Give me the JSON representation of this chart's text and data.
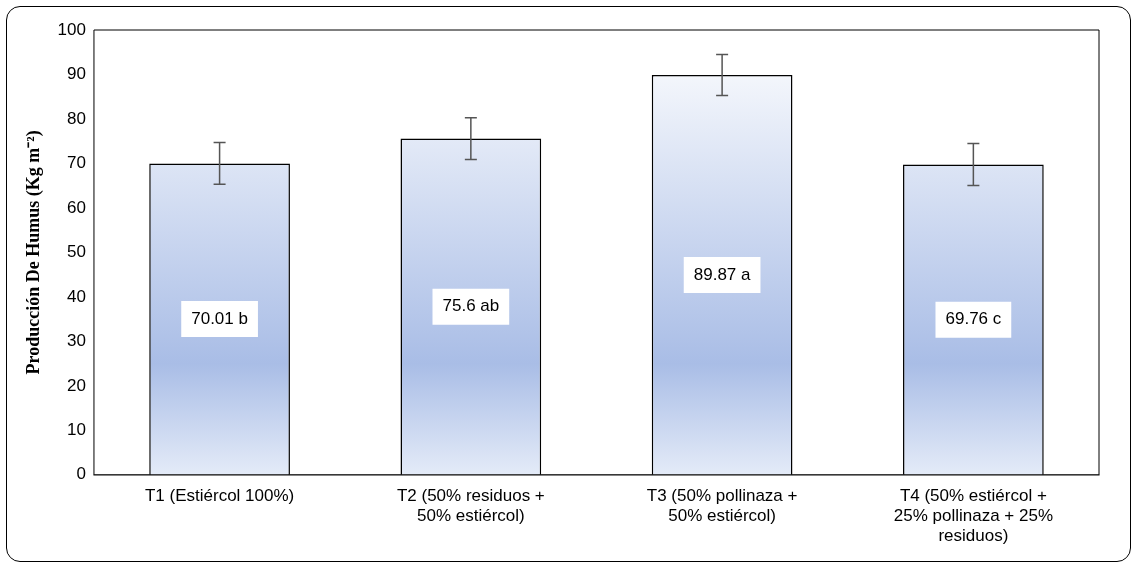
{
  "chart_data": {
    "type": "bar",
    "ylabel": "Producción De Humus (Kg m⁻²)",
    "categories": [
      "T1 (Estiércol 100%)",
      "T2 (50% residuos + 50% estiércol)",
      "T3 (50% pollinaza + 50% estiércol)",
      "T4 (50% estiércol + 25% pollinaza + 25% residuos)"
    ],
    "values": [
      70.01,
      75.6,
      89.87,
      69.76
    ],
    "errors": [
      4.7,
      4.7,
      4.6,
      4.7
    ],
    "value_labels": [
      "70.01 b",
      "75.6 ab",
      "89.87 a",
      "69.76 c"
    ],
    "color": "#a9bde6",
    "ylim": [
      0,
      100
    ],
    "yticks": [
      0,
      10,
      20,
      30,
      40,
      50,
      60,
      70,
      80,
      90,
      100
    ],
    "grid": false,
    "legend": false
  }
}
